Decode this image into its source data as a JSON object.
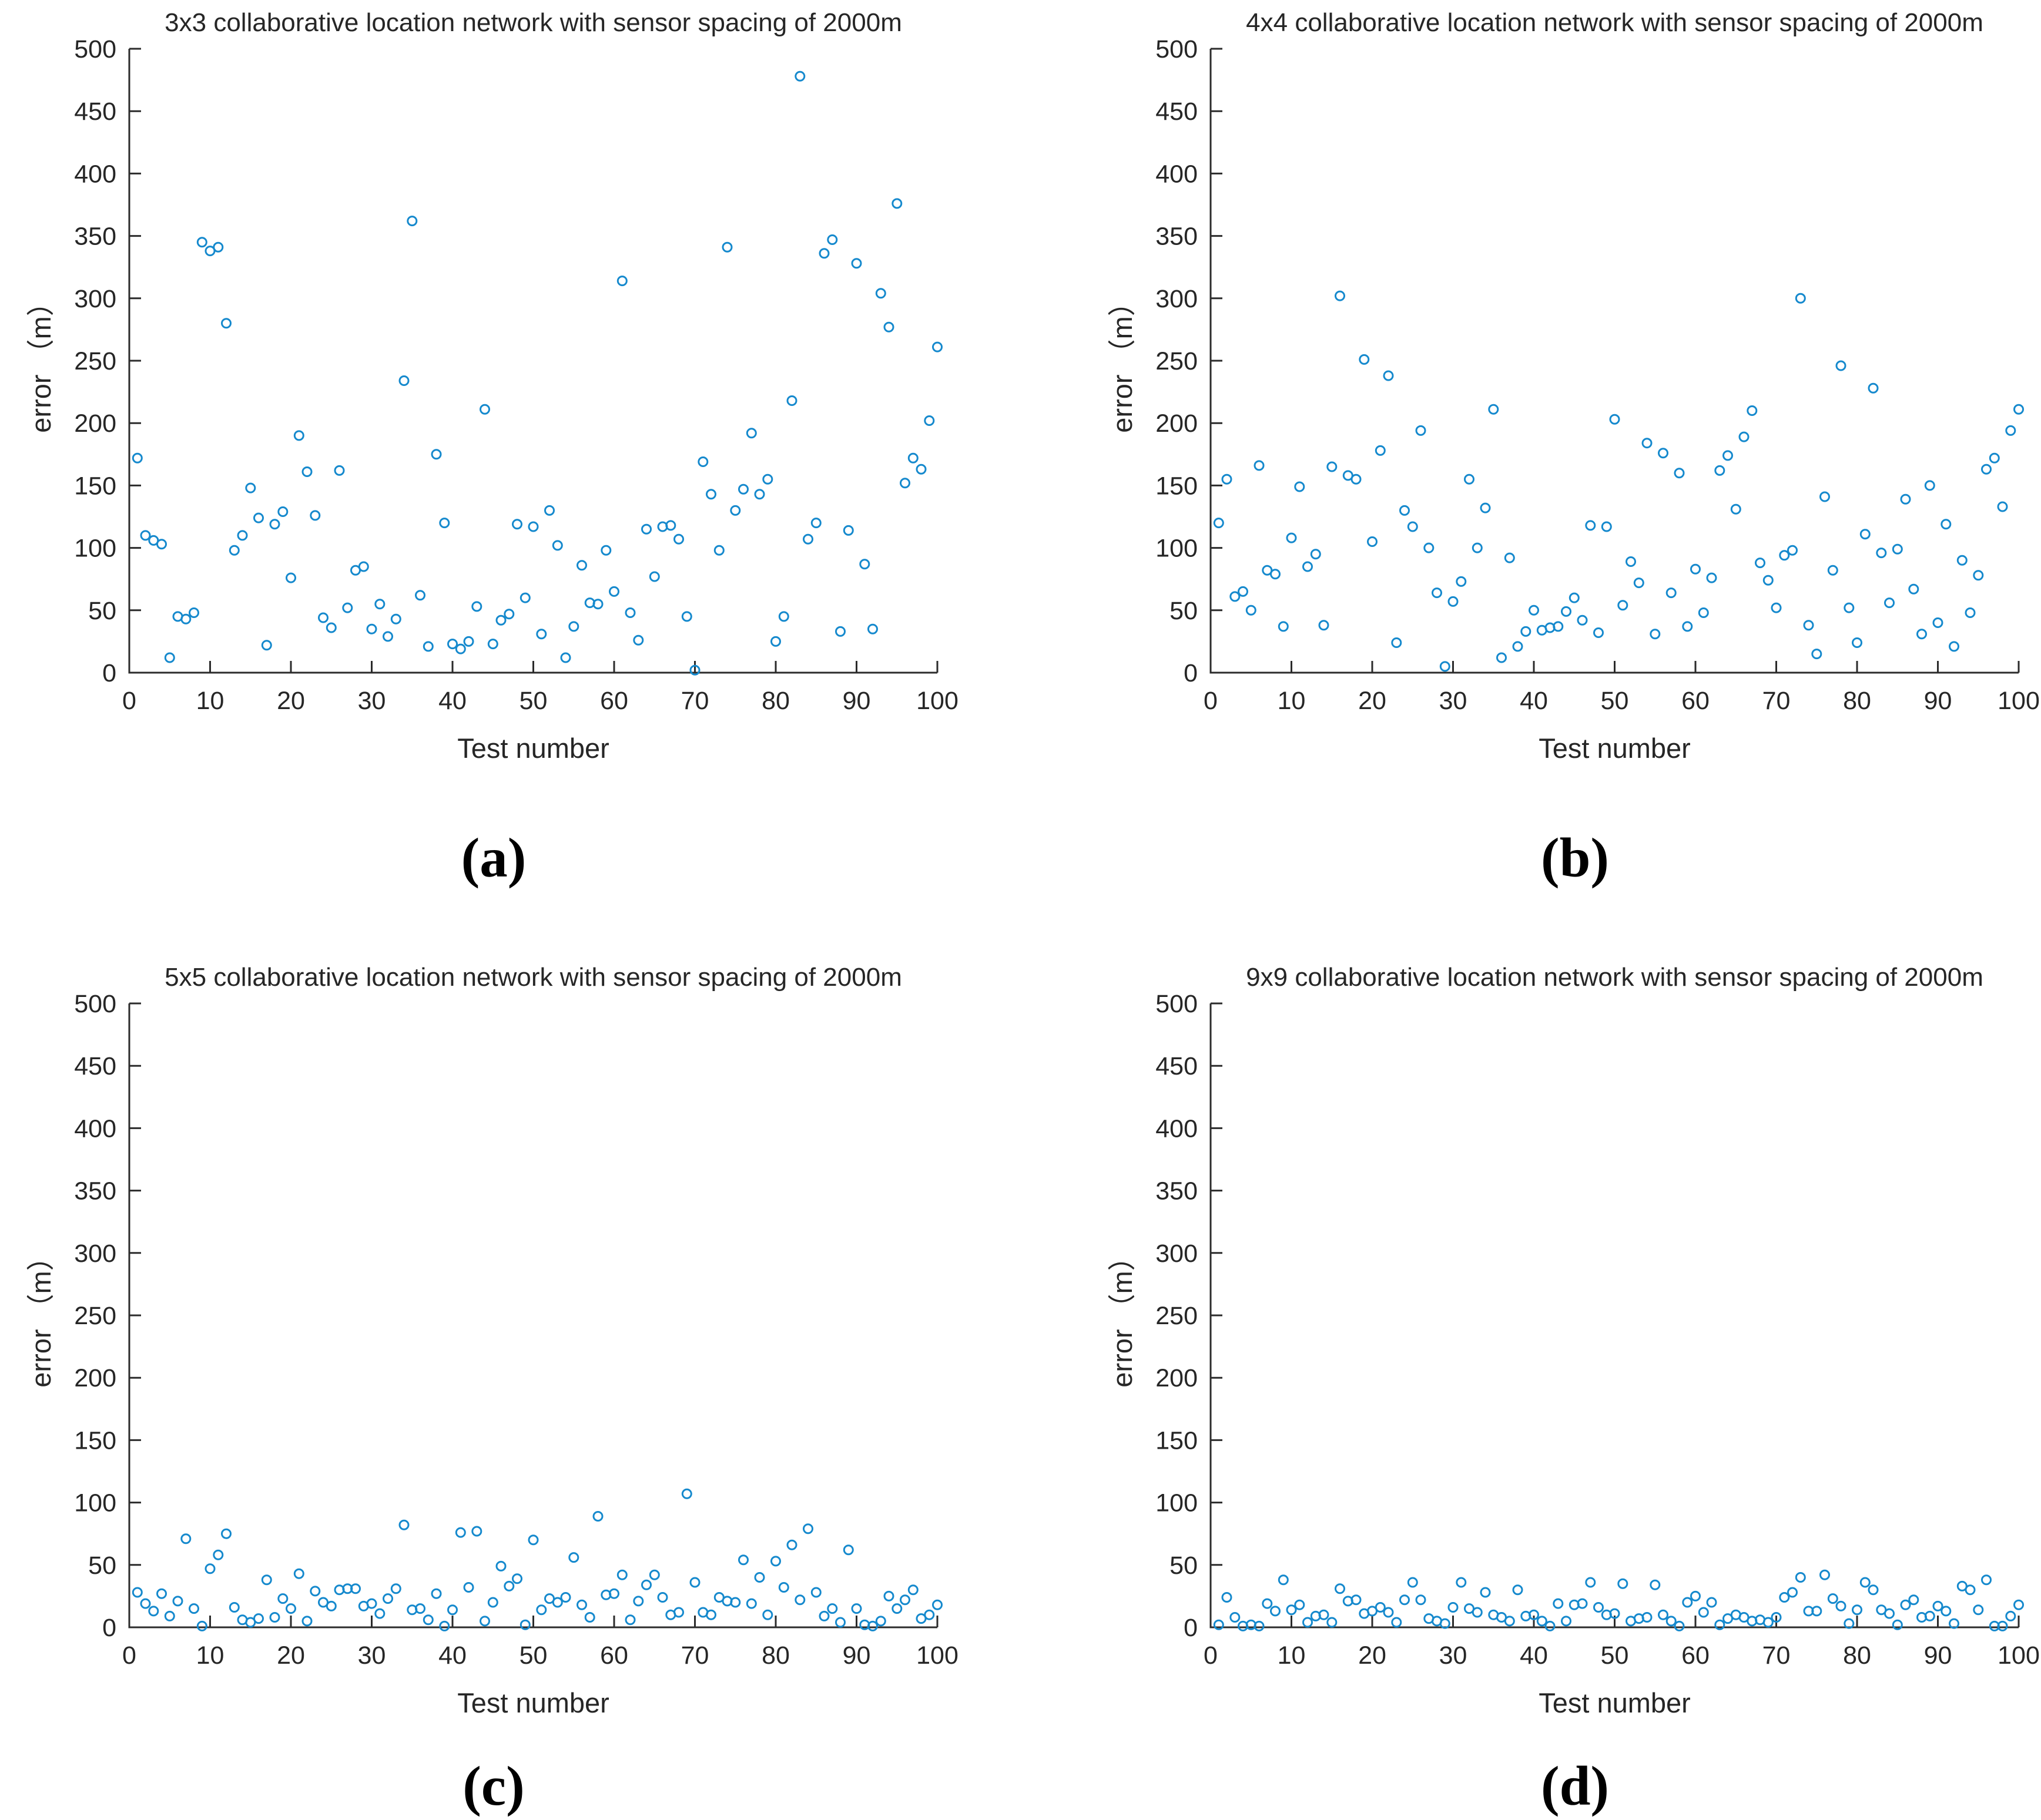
{
  "figure": {
    "background": "#ffffff",
    "marker_color": "#1589cd",
    "axis_color": "#2b2b2b",
    "captions": {
      "a": "(a)",
      "b": "(b)",
      "c": "(c)",
      "d": "(d)"
    }
  },
  "chart_data": [
    {
      "type": "scatter",
      "title": "3x3 collaborative location network with sensor spacing of 2000m",
      "xlabel": "Test number",
      "ylabel": "error （m）",
      "xlim": [
        0,
        100
      ],
      "ylim": [
        0,
        500
      ],
      "xticks": [
        0,
        10,
        20,
        30,
        40,
        50,
        60,
        70,
        80,
        90,
        100
      ],
      "yticks": [
        0,
        50,
        100,
        150,
        200,
        250,
        300,
        350,
        400,
        450,
        500
      ],
      "grid": false,
      "legend": null,
      "x": [
        1,
        2,
        3,
        4,
        5,
        6,
        7,
        8,
        9,
        10,
        11,
        12,
        13,
        14,
        15,
        16,
        17,
        18,
        19,
        20,
        21,
        22,
        23,
        24,
        25,
        26,
        27,
        28,
        29,
        30,
        31,
        32,
        33,
        34,
        35,
        36,
        37,
        38,
        39,
        40,
        41,
        42,
        43,
        44,
        45,
        46,
        47,
        48,
        49,
        50,
        51,
        52,
        53,
        54,
        55,
        56,
        57,
        58,
        59,
        60,
        61,
        62,
        63,
        64,
        65,
        66,
        67,
        68,
        69,
        70,
        71,
        72,
        73,
        74,
        75,
        76,
        77,
        78,
        79,
        80,
        81,
        82,
        83,
        84,
        85,
        86,
        87,
        88,
        89,
        90,
        91,
        92,
        93,
        94,
        95,
        96,
        97,
        98,
        99,
        100
      ],
      "y": [
        172,
        110,
        106,
        103,
        12,
        45,
        43,
        48,
        345,
        338,
        341,
        280,
        98,
        110,
        148,
        124,
        22,
        119,
        129,
        76,
        190,
        161,
        126,
        44,
        36,
        162,
        52,
        82,
        85,
        35,
        55,
        29,
        43,
        234,
        362,
        62,
        21,
        175,
        120,
        23,
        19,
        25,
        53,
        211,
        23,
        42,
        47,
        119,
        60,
        117,
        31,
        130,
        102,
        12,
        37,
        86,
        56,
        55,
        98,
        65,
        314,
        48,
        26,
        115,
        77,
        117,
        118,
        107,
        45,
        2,
        169,
        143,
        98,
        341,
        130,
        147,
        192,
        143,
        155,
        25,
        45,
        218,
        478,
        107,
        120,
        336,
        347,
        33,
        114,
        328,
        87,
        35,
        304,
        277,
        376,
        152,
        172,
        163,
        202,
        261
      ]
    },
    {
      "type": "scatter",
      "title": "4x4 collaborative location network with sensor spacing of 2000m",
      "xlabel": "Test number",
      "ylabel": "error （m）",
      "xlim": [
        0,
        100
      ],
      "ylim": [
        0,
        500
      ],
      "xticks": [
        0,
        10,
        20,
        30,
        40,
        50,
        60,
        70,
        80,
        90,
        100
      ],
      "yticks": [
        0,
        50,
        100,
        150,
        200,
        250,
        300,
        350,
        400,
        450,
        500
      ],
      "grid": false,
      "legend": null,
      "x": [
        1,
        2,
        3,
        4,
        5,
        6,
        7,
        8,
        9,
        10,
        11,
        12,
        13,
        14,
        15,
        16,
        17,
        18,
        19,
        20,
        21,
        22,
        23,
        24,
        25,
        26,
        27,
        28,
        29,
        30,
        31,
        32,
        33,
        34,
        35,
        36,
        37,
        38,
        39,
        40,
        41,
        42,
        43,
        44,
        45,
        46,
        47,
        48,
        49,
        50,
        51,
        52,
        53,
        54,
        55,
        56,
        57,
        58,
        59,
        60,
        61,
        62,
        63,
        64,
        65,
        66,
        67,
        68,
        69,
        70,
        71,
        72,
        73,
        74,
        75,
        76,
        77,
        78,
        79,
        80,
        81,
        82,
        83,
        84,
        85,
        86,
        87,
        88,
        89,
        90,
        91,
        92,
        93,
        94,
        95,
        96,
        97,
        98,
        99,
        100
      ],
      "y": [
        120,
        155,
        61,
        65,
        50,
        166,
        82,
        79,
        37,
        108,
        149,
        85,
        95,
        38,
        165,
        302,
        158,
        155,
        251,
        105,
        178,
        238,
        24,
        130,
        117,
        194,
        100,
        64,
        5,
        57,
        73,
        155,
        100,
        132,
        211,
        12,
        92,
        21,
        33,
        50,
        34,
        36,
        37,
        49,
        60,
        42,
        118,
        32,
        117,
        203,
        54,
        89,
        72,
        184,
        31,
        176,
        64,
        160,
        37,
        83,
        48,
        76,
        162,
        174,
        131,
        189,
        210,
        88,
        74,
        52,
        94,
        98,
        300,
        38,
        15,
        141,
        82,
        246,
        52,
        24,
        111,
        228,
        96,
        56,
        99,
        139,
        67,
        31,
        150,
        40,
        119,
        21,
        90,
        48,
        78,
        163,
        172,
        133,
        194,
        211
      ]
    },
    {
      "type": "scatter",
      "title": "5x5 collaborative location network with sensor spacing of 2000m",
      "xlabel": "Test number",
      "ylabel": "error （m）",
      "xlim": [
        0,
        100
      ],
      "ylim": [
        0,
        500
      ],
      "xticks": [
        0,
        10,
        20,
        30,
        40,
        50,
        60,
        70,
        80,
        90,
        100
      ],
      "yticks": [
        0,
        50,
        100,
        150,
        200,
        250,
        300,
        350,
        400,
        450,
        500
      ],
      "grid": false,
      "legend": null,
      "x": [
        1,
        2,
        3,
        4,
        5,
        6,
        7,
        8,
        9,
        10,
        11,
        12,
        13,
        14,
        15,
        16,
        17,
        18,
        19,
        20,
        21,
        22,
        23,
        24,
        25,
        26,
        27,
        28,
        29,
        30,
        31,
        32,
        33,
        34,
        35,
        36,
        37,
        38,
        39,
        40,
        41,
        42,
        43,
        44,
        45,
        46,
        47,
        48,
        49,
        50,
        51,
        52,
        53,
        54,
        55,
        56,
        57,
        58,
        59,
        60,
        61,
        62,
        63,
        64,
        65,
        66,
        67,
        68,
        69,
        70,
        71,
        72,
        73,
        74,
        75,
        76,
        77,
        78,
        79,
        80,
        81,
        82,
        83,
        84,
        85,
        86,
        87,
        88,
        89,
        90,
        91,
        92,
        93,
        94,
        95,
        96,
        97,
        98,
        99,
        100
      ],
      "y": [
        28,
        19,
        13,
        27,
        9,
        21,
        71,
        15,
        1,
        47,
        58,
        75,
        16,
        6,
        4,
        7,
        38,
        8,
        23,
        15,
        43,
        5,
        29,
        20,
        17,
        30,
        31,
        31,
        17,
        19,
        11,
        23,
        31,
        82,
        14,
        15,
        6,
        27,
        1,
        14,
        76,
        32,
        77,
        5,
        20,
        49,
        33,
        39,
        2,
        70,
        14,
        23,
        20,
        24,
        56,
        18,
        8,
        89,
        26,
        27,
        42,
        6,
        21,
        34,
        42,
        24,
        10,
        12,
        107,
        36,
        12,
        10,
        24,
        21,
        20,
        54,
        19,
        40,
        10,
        53,
        32,
        66,
        22,
        79,
        28,
        9,
        15,
        4,
        62,
        15,
        2,
        1,
        5,
        25,
        15,
        22,
        30,
        7,
        10,
        18
      ]
    },
    {
      "type": "scatter",
      "title": "9x9 collaborative location network with sensor spacing of 2000m",
      "xlabel": "Test number",
      "ylabel": "error （m）",
      "xlim": [
        0,
        100
      ],
      "ylim": [
        0,
        500
      ],
      "xticks": [
        0,
        10,
        20,
        30,
        40,
        50,
        60,
        70,
        80,
        90,
        100
      ],
      "yticks": [
        0,
        50,
        100,
        150,
        200,
        250,
        300,
        350,
        400,
        450,
        500
      ],
      "grid": false,
      "legend": null,
      "x": [
        1,
        2,
        3,
        4,
        5,
        6,
        7,
        8,
        9,
        10,
        11,
        12,
        13,
        14,
        15,
        16,
        17,
        18,
        19,
        20,
        21,
        22,
        23,
        24,
        25,
        26,
        27,
        28,
        29,
        30,
        31,
        32,
        33,
        34,
        35,
        36,
        37,
        38,
        39,
        40,
        41,
        42,
        43,
        44,
        45,
        46,
        47,
        48,
        49,
        50,
        51,
        52,
        53,
        54,
        55,
        56,
        57,
        58,
        59,
        60,
        61,
        62,
        63,
        64,
        65,
        66,
        67,
        68,
        69,
        70,
        71,
        72,
        73,
        74,
        75,
        76,
        77,
        78,
        79,
        80,
        81,
        82,
        83,
        84,
        85,
        86,
        87,
        88,
        89,
        90,
        91,
        92,
        93,
        94,
        95,
        96,
        97,
        98,
        99,
        100
      ],
      "y": [
        2,
        24,
        8,
        1,
        2,
        1,
        19,
        13,
        38,
        14,
        18,
        4,
        9,
        10,
        4,
        31,
        21,
        22,
        11,
        13,
        16,
        12,
        4,
        22,
        36,
        22,
        7,
        5,
        3,
        16,
        36,
        15,
        12,
        28,
        10,
        8,
        5,
        30,
        9,
        10,
        5,
        1,
        19,
        5,
        18,
        19,
        36,
        16,
        10,
        11,
        35,
        5,
        7,
        8,
        34,
        10,
        5,
        1,
        20,
        25,
        12,
        20,
        2,
        7,
        10,
        8,
        5,
        6,
        4,
        8,
        24,
        28,
        40,
        13,
        13,
        42,
        23,
        17,
        3,
        14,
        36,
        30,
        14,
        11,
        2,
        18,
        22,
        8,
        9,
        17,
        13,
        3,
        33,
        30,
        14,
        38,
        1,
        1,
        9,
        18
      ]
    }
  ]
}
